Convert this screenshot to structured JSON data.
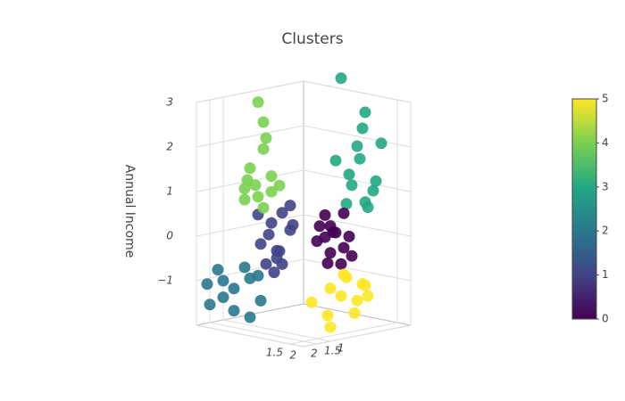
{
  "chart_data": {
    "type": "scatter3d",
    "title": "Clusters",
    "zlabel": "Annual Income",
    "x": [
      0.2,
      0.5,
      0.8,
      1.0,
      0.4,
      1.3,
      0.7,
      0.9,
      0.3,
      1.1,
      0.6,
      1.5,
      0.1,
      0.8,
      -0.5,
      -0.8,
      -0.3,
      -1.0,
      -0.6,
      -0.2,
      -0.9,
      -0.4,
      -0.7,
      -0.1,
      -1.2,
      -0.5,
      0,
      -0.8,
      -1.5,
      -1.2,
      -0.8,
      -1.8,
      -1.0,
      -0.6,
      -1.6,
      -0.9,
      -1.4,
      -0.5,
      -1.9,
      -1.1,
      0.3,
      0.5,
      0.8,
      1.0,
      0.2,
      0.6,
      0.9,
      0.4,
      1.2,
      0.7,
      0.1,
      1.1,
      0.5,
      1.3,
      -1.2,
      -1.5,
      -0.9,
      -1.3,
      -1.0,
      -1.6,
      -0.8,
      -1.1,
      -1.4,
      -0.7,
      -1.0,
      -1.3,
      -1.8,
      -0.6,
      1.0,
      1.4,
      1.8,
      0.8,
      1.2,
      1.6,
      2.0,
      0.5,
      1.5,
      1.9,
      0.9,
      1.3
    ],
    "y": [
      -0.4,
      -0.3,
      -0.2,
      -0.5,
      -0.6,
      -0.4,
      -0.8,
      0,
      -0.2,
      -0.1,
      -0.5,
      -0.3,
      -0.7,
      -0.6,
      0.3,
      0.5,
      0.6,
      0.2,
      0.8,
      0.3,
      0.7,
      0.1,
      0.1,
      0.9,
      0.5,
      0.6,
      0.4,
      0.2,
      1.5,
      1.8,
      1.2,
      1.4,
      1.6,
      1.0,
      1.9,
      0.8,
      1.2,
      1.5,
      1.7,
      1.1,
      -1.5,
      -1.2,
      -1.8,
      -1.4,
      -1.0,
      -1.6,
      -1.2,
      -1.9,
      -1.5,
      -0.9,
      -1.3,
      -1.8,
      -1.5,
      -1.0,
      0.5,
      0.3,
      0.6,
      0.8,
      0.2,
      0.6,
      0.4,
      0.9,
      0.1,
      0.7,
      0.5,
      0.4,
      0.4,
      0.3,
      -0.5,
      -0.8,
      -0.6,
      -0.2,
      0.3,
      -0.4,
      -0.3,
      0.2,
      0.5,
      0,
      -0.7,
      -0.1
    ],
    "z": [
      0.2,
      0,
      0.3,
      -0.2,
      -0.4,
      0.1,
      0.5,
      -0.5,
      -0.1,
      0.2,
      0.1,
      -0.3,
      0.4,
      -0.6,
      0.5,
      0,
      -0.3,
      0.2,
      -0.6,
      0.7,
      -0.2,
      0.1,
      -0.7,
      -0.4,
      0.4,
      -0.8,
      0.3,
      -0.4,
      -1,
      -1.3,
      -0.9,
      -0.8,
      -1.6,
      -1.4,
      -1.5,
      -0.9,
      -1.2,
      -1.7,
      -1.1,
      -0.7,
      1.0,
      1.3,
      0.9,
      0.6,
      1.6,
      2.3,
      1.7,
      2.6,
      1.2,
      0.7,
      3.4,
      2.0,
      1.9,
      0.8,
      0.8,
      1.0,
      0.6,
      1.2,
      0.9,
      0.7,
      1.3,
      1.5,
      1.8,
      2.2,
      2.5,
      2.9,
      0.9,
      1.1,
      -0.8,
      -1.0,
      -1.2,
      -1.1,
      -1.6,
      -1.3,
      -0.9,
      -1.4,
      -1.8,
      -1.5,
      -0.9,
      -1.2
    ],
    "color_values": [
      0,
      0,
      0,
      0,
      0,
      0,
      0,
      0,
      0,
      0,
      0,
      0,
      0,
      0,
      1,
      1,
      1,
      1,
      1,
      1,
      1,
      1,
      1,
      1,
      1,
      1,
      1,
      1,
      2,
      2,
      2,
      2,
      2,
      2,
      2,
      2,
      2,
      2,
      2,
      2,
      3,
      3,
      3,
      3,
      3,
      3,
      3,
      3,
      3,
      3,
      3,
      3,
      3,
      3,
      4,
      4,
      4,
      4,
      4,
      4,
      4,
      4,
      4,
      4,
      4,
      4,
      4,
      4,
      5,
      5,
      5,
      5,
      5,
      5,
      5,
      5,
      5,
      5,
      5,
      5
    ],
    "xlim": [
      -2,
      2
    ],
    "ylim": [
      -2,
      2
    ],
    "zlim": [
      -2,
      3
    ],
    "xticks": [
      1.5,
      2
    ],
    "yticks": [
      1,
      1.5,
      2
    ],
    "zticks": [
      {
        "value": -1,
        "label": "−1"
      },
      0,
      1,
      2,
      3
    ],
    "grid": true,
    "colorscale": [
      {
        "value": 0,
        "color": "#440154"
      },
      {
        "value": 1,
        "color": "#414487"
      },
      {
        "value": 2,
        "color": "#2a788e"
      },
      {
        "value": 3,
        "color": "#22a884"
      },
      {
        "value": 4,
        "color": "#7ad151"
      },
      {
        "value": 5,
        "color": "#fde725"
      }
    ],
    "clim": [
      0,
      5
    ],
    "colorbar_ticks": [
      0,
      1,
      2,
      3,
      4,
      5
    ]
  }
}
